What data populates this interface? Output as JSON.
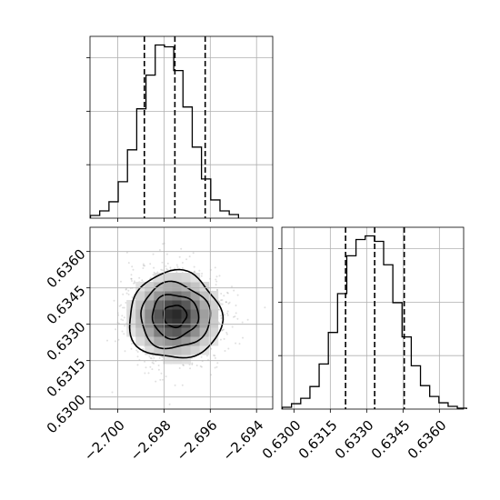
{
  "chart_data": {
    "type": "corner",
    "parameters": [
      "",
      ""
    ],
    "grid": true,
    "panels": [
      {
        "name": "param1-marginal",
        "type": "histogram",
        "xlim": [
          -2.7012,
          -2.6933
        ],
        "bins": [
          {
            "x": -2.70098,
            "y": 3
          },
          {
            "x": -2.70058,
            "y": 8
          },
          {
            "x": -2.70018,
            "y": 18
          },
          {
            "x": -2.69978,
            "y": 40
          },
          {
            "x": -2.69938,
            "y": 75
          },
          {
            "x": -2.69898,
            "y": 120
          },
          {
            "x": -2.69858,
            "y": 157
          },
          {
            "x": -2.69818,
            "y": 190
          },
          {
            "x": -2.69778,
            "y": 188
          },
          {
            "x": -2.69738,
            "y": 162
          },
          {
            "x": -2.69698,
            "y": 122
          },
          {
            "x": -2.69658,
            "y": 78
          },
          {
            "x": -2.69618,
            "y": 43
          },
          {
            "x": -2.69578,
            "y": 20
          },
          {
            "x": -2.69538,
            "y": 8
          },
          {
            "x": -2.69498,
            "y": 4
          }
        ],
        "quantiles": [
          -2.69885,
          -2.69753,
          -2.69622
        ]
      },
      {
        "name": "joint-density",
        "type": "hist2d",
        "xlim": [
          -2.7012,
          -2.6933
        ],
        "ylim": [
          0.6295,
          0.637
        ],
        "xticks": [
          "−2.700",
          "−2.698",
          "−2.696",
          "−2.694"
        ],
        "xtick_values": [
          -2.7,
          -2.698,
          -2.696,
          -2.694
        ],
        "yticks": [
          "0.6300",
          "0.6315",
          "0.6330",
          "0.6345",
          "0.6360"
        ],
        "ytick_values": [
          0.63,
          0.6315,
          0.633,
          0.6345,
          0.636
        ],
        "center": [
          -2.69753,
          0.63334
        ],
        "sigma": [
          0.001,
          0.0009
        ],
        "contour_levels": [
          0.5,
          1.0,
          1.5,
          2.0
        ]
      },
      {
        "name": "param2-marginal",
        "type": "histogram",
        "xlim": [
          0.6295,
          0.637
        ],
        "xticks": [
          "0.6300",
          "0.6315",
          "0.6330",
          "0.6345",
          "0.6360"
        ],
        "xtick_values": [
          0.63,
          0.6315,
          0.633,
          0.6345,
          0.636
        ],
        "bins": [
          {
            "x": 0.62971,
            "y": 2
          },
          {
            "x": 0.63009,
            "y": 6
          },
          {
            "x": 0.63047,
            "y": 12
          },
          {
            "x": 0.63085,
            "y": 25
          },
          {
            "x": 0.63123,
            "y": 50
          },
          {
            "x": 0.63161,
            "y": 85
          },
          {
            "x": 0.63199,
            "y": 128
          },
          {
            "x": 0.63237,
            "y": 170
          },
          {
            "x": 0.63275,
            "y": 188
          },
          {
            "x": 0.63313,
            "y": 192
          },
          {
            "x": 0.63351,
            "y": 186
          },
          {
            "x": 0.63389,
            "y": 160
          },
          {
            "x": 0.63427,
            "y": 118
          },
          {
            "x": 0.63465,
            "y": 80
          },
          {
            "x": 0.63503,
            "y": 48
          },
          {
            "x": 0.63541,
            "y": 26
          },
          {
            "x": 0.63579,
            "y": 14
          },
          {
            "x": 0.63617,
            "y": 7
          },
          {
            "x": 0.63655,
            "y": 3
          },
          {
            "x": 0.63693,
            "y": 1
          }
        ],
        "quantiles": [
          0.63213,
          0.63333,
          0.63455
        ]
      }
    ]
  },
  "colors": {
    "ink": "#000000",
    "grid": "#b0b0b0",
    "background": "#ffffff"
  }
}
